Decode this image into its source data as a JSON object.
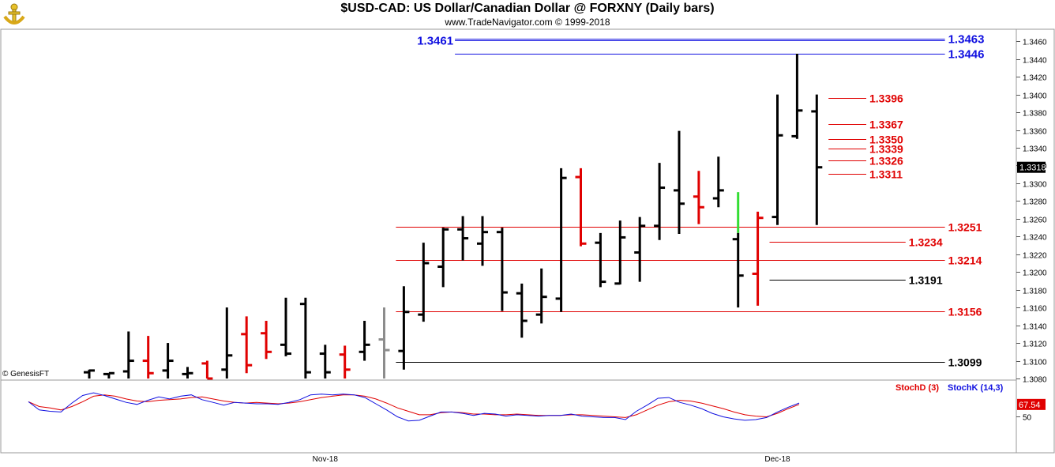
{
  "header": {
    "title": "$USD-CAD:  US Dollar/Canadian Dollar @ FORXNY  (Daily bars)",
    "subtitle": "www.TradeNavigator.com © 1999-2018",
    "logo_icon": "trade-navigator-logo-icon"
  },
  "copyright": "© GenesisFT",
  "colors": {
    "up": "#000000",
    "down": "#e00000",
    "blue": "#1010e0",
    "grey": "#8c8c8c",
    "green": "#33dd33"
  },
  "chart_data": [
    {
      "type": "ohlc",
      "title": "$USD-CAD:  US Dollar/Canadian Dollar @ FORXNY  (Daily bars)",
      "ylim": [
        1.308,
        1.347
      ],
      "y_ticks": [
        "1.3080",
        "1.3100",
        "1.3120",
        "1.3140",
        "1.3160",
        "1.3180",
        "1.3200",
        "1.3220",
        "1.3240",
        "1.3260",
        "1.3280",
        "1.3300",
        "1.3320",
        "1.3340",
        "1.3360",
        "1.3380",
        "1.3400",
        "1.3420",
        "1.3440",
        "1.3460"
      ],
      "x_labels": [
        {
          "label": "Nov-18",
          "index": 12
        },
        {
          "label": "Dec-18",
          "index": 35
        }
      ],
      "last_price": "1.3318",
      "bars": [
        {
          "o": 1.3087,
          "h": 1.309,
          "l": 1.308,
          "c": 1.3089,
          "color": "black"
        },
        {
          "o": 1.3085,
          "h": 1.3085,
          "l": 1.308,
          "c": 1.3086,
          "color": "black"
        },
        {
          "o": 1.3088,
          "h": 1.3133,
          "l": 1.308,
          "c": 1.31,
          "color": "black"
        },
        {
          "o": 1.31,
          "h": 1.3128,
          "l": 1.308,
          "c": 1.3086,
          "color": "red"
        },
        {
          "o": 1.3089,
          "h": 1.312,
          "l": 1.308,
          "c": 1.31,
          "color": "black"
        },
        {
          "o": 1.3085,
          "h": 1.3093,
          "l": 1.308,
          "c": 1.3086,
          "color": "black"
        },
        {
          "o": 1.3097,
          "h": 1.31,
          "l": 1.308,
          "c": 1.308,
          "color": "red"
        },
        {
          "o": 1.309,
          "h": 1.316,
          "l": 1.308,
          "c": 1.3106,
          "color": "black"
        },
        {
          "o": 1.313,
          "h": 1.315,
          "l": 1.3086,
          "c": 1.3095,
          "color": "red"
        },
        {
          "o": 1.3131,
          "h": 1.3145,
          "l": 1.3102,
          "c": 1.311,
          "color": "red"
        },
        {
          "o": 1.3118,
          "h": 1.3171,
          "l": 1.3105,
          "c": 1.3108,
          "color": "black"
        },
        {
          "o": 1.3164,
          "h": 1.3171,
          "l": 1.308,
          "c": 1.3087,
          "color": "black"
        },
        {
          "o": 1.3108,
          "h": 1.3118,
          "l": 1.308,
          "c": 1.3087,
          "color": "black"
        },
        {
          "o": 1.3107,
          "h": 1.3117,
          "l": 1.308,
          "c": 1.309,
          "color": "red"
        },
        {
          "o": 1.311,
          "h": 1.3145,
          "l": 1.31,
          "c": 1.3118,
          "color": "black"
        },
        {
          "o": 1.3124,
          "h": 1.316,
          "l": 1.308,
          "c": 1.3112,
          "color": "grey"
        },
        {
          "o": 1.3111,
          "h": 1.3184,
          "l": 1.309,
          "c": 1.3155,
          "color": "black"
        },
        {
          "o": 1.3152,
          "h": 1.3233,
          "l": 1.3144,
          "c": 1.321,
          "color": "black"
        },
        {
          "o": 1.3206,
          "h": 1.325,
          "l": 1.3183,
          "c": 1.3248,
          "color": "black"
        },
        {
          "o": 1.3248,
          "h": 1.3263,
          "l": 1.3213,
          "c": 1.3238,
          "color": "black"
        },
        {
          "o": 1.3232,
          "h": 1.3263,
          "l": 1.3207,
          "c": 1.3245,
          "color": "black"
        },
        {
          "o": 1.3245,
          "h": 1.325,
          "l": 1.3156,
          "c": 1.3177,
          "color": "black"
        },
        {
          "o": 1.3176,
          "h": 1.3187,
          "l": 1.3126,
          "c": 1.3145,
          "color": "black"
        },
        {
          "o": 1.3152,
          "h": 1.3204,
          "l": 1.3142,
          "c": 1.3172,
          "color": "black"
        },
        {
          "o": 1.317,
          "h": 1.3317,
          "l": 1.3155,
          "c": 1.3306,
          "color": "black"
        },
        {
          "o": 1.3307,
          "h": 1.3317,
          "l": 1.3229,
          "c": 1.3232,
          "color": "red"
        },
        {
          "o": 1.3233,
          "h": 1.3244,
          "l": 1.3183,
          "c": 1.3189,
          "color": "black"
        },
        {
          "o": 1.3187,
          "h": 1.3258,
          "l": 1.3186,
          "c": 1.3239,
          "color": "black"
        },
        {
          "o": 1.3222,
          "h": 1.3262,
          "l": 1.3189,
          "c": 1.3252,
          "color": "black"
        },
        {
          "o": 1.3252,
          "h": 1.3323,
          "l": 1.3236,
          "c": 1.3295,
          "color": "black"
        },
        {
          "o": 1.3292,
          "h": 1.3359,
          "l": 1.3243,
          "c": 1.3277,
          "color": "black"
        },
        {
          "o": 1.3285,
          "h": 1.3314,
          "l": 1.3254,
          "c": 1.3273,
          "color": "red"
        },
        {
          "o": 1.3283,
          "h": 1.333,
          "l": 1.3273,
          "c": 1.3292,
          "color": "black"
        },
        {
          "o": 1.3237,
          "h": 1.329,
          "l": 1.316,
          "c": 1.3196,
          "color": "black",
          "wick": "green"
        },
        {
          "o": 1.3198,
          "h": 1.3268,
          "l": 1.3162,
          "c": 1.3261,
          "color": "red"
        },
        {
          "o": 1.3262,
          "h": 1.34,
          "l": 1.3253,
          "c": 1.3354,
          "color": "black"
        },
        {
          "o": 1.3353,
          "h": 1.3446,
          "l": 1.335,
          "c": 1.3382,
          "color": "black"
        },
        {
          "o": 1.3381,
          "h": 1.34,
          "l": 1.3253,
          "c": 1.3318,
          "color": "black"
        }
      ],
      "levels": [
        {
          "value": 1.3463,
          "label": "1.3463",
          "color": "blue",
          "from": 19,
          "to": 44
        },
        {
          "value": 1.3461,
          "label": "1.3461",
          "color": "blue",
          "from": 19,
          "to": 44,
          "label_side": "left"
        },
        {
          "value": 1.3446,
          "label": "1.3446",
          "color": "blue",
          "from": 19,
          "to": 44
        },
        {
          "value": 1.3396,
          "label": "1.3396",
          "color": "red",
          "from": 38,
          "to": 40
        },
        {
          "value": 1.3367,
          "label": "1.3367",
          "color": "red",
          "from": 38,
          "to": 40
        },
        {
          "value": 1.335,
          "label": "1.3350",
          "color": "red",
          "from": 38,
          "to": 40
        },
        {
          "value": 1.3339,
          "label": "1.3339",
          "color": "red",
          "from": 38,
          "to": 40
        },
        {
          "value": 1.3326,
          "label": "1.3326",
          "color": "red",
          "from": 38,
          "to": 40
        },
        {
          "value": 1.3311,
          "label": "1.3311",
          "color": "red",
          "from": 38,
          "to": 40
        },
        {
          "value": 1.3251,
          "label": "1.3251",
          "color": "red",
          "from": 16,
          "to": 44
        },
        {
          "value": 1.3234,
          "label": "1.3234",
          "color": "red",
          "from": 35,
          "to": 42
        },
        {
          "value": 1.3214,
          "label": "1.3214",
          "color": "red",
          "from": 16,
          "to": 44
        },
        {
          "value": 1.3191,
          "label": "1.3191",
          "color": "black",
          "from": 35,
          "to": 42
        },
        {
          "value": 1.3156,
          "label": "1.3156",
          "color": "red",
          "from": 16,
          "to": 44
        },
        {
          "value": 1.3099,
          "label": "1.3099",
          "color": "black",
          "from": 16,
          "to": 44
        }
      ]
    },
    {
      "type": "line",
      "panel": "stochastic",
      "ylim": [
        0,
        100
      ],
      "y_tick": "50",
      "last_value_label": "67.54",
      "legend": [
        "StochD (3)",
        "StochK (14,3)"
      ],
      "series": [
        {
          "name": "StochD (3)",
          "color": "red",
          "values": [
            72,
            65,
            63,
            60,
            65,
            72,
            80,
            82,
            80,
            76,
            73,
            72,
            74,
            75,
            76,
            78,
            79,
            76,
            73,
            71,
            70,
            71,
            70,
            69,
            70,
            72,
            75,
            78,
            80,
            82,
            82,
            80,
            76,
            70,
            63,
            58,
            53,
            53,
            56,
            57,
            56,
            54,
            54,
            53,
            53,
            54,
            53,
            52,
            52,
            52,
            53,
            53,
            52,
            51,
            50,
            49,
            53,
            60,
            67,
            72,
            74,
            73,
            70,
            66,
            62,
            57,
            53,
            51,
            50,
            55,
            62,
            68
          ]
        },
        {
          "name": "StochK (14,3)",
          "color": "blue",
          "values": [
            72,
            60,
            58,
            57,
            70,
            81,
            85,
            81,
            76,
            71,
            68,
            74,
            79,
            76,
            80,
            82,
            75,
            71,
            67,
            71,
            70,
            69,
            69,
            68,
            71,
            75,
            82,
            83,
            82,
            83,
            82,
            78,
            69,
            60,
            50,
            44,
            45,
            51,
            57,
            57,
            55,
            52,
            55,
            54,
            51,
            53,
            52,
            51,
            52,
            52,
            54,
            51,
            50,
            49,
            49,
            46,
            58,
            67,
            77,
            78,
            71,
            67,
            62,
            55,
            50,
            47,
            45,
            46,
            49,
            57,
            64,
            70
          ]
        }
      ]
    }
  ]
}
